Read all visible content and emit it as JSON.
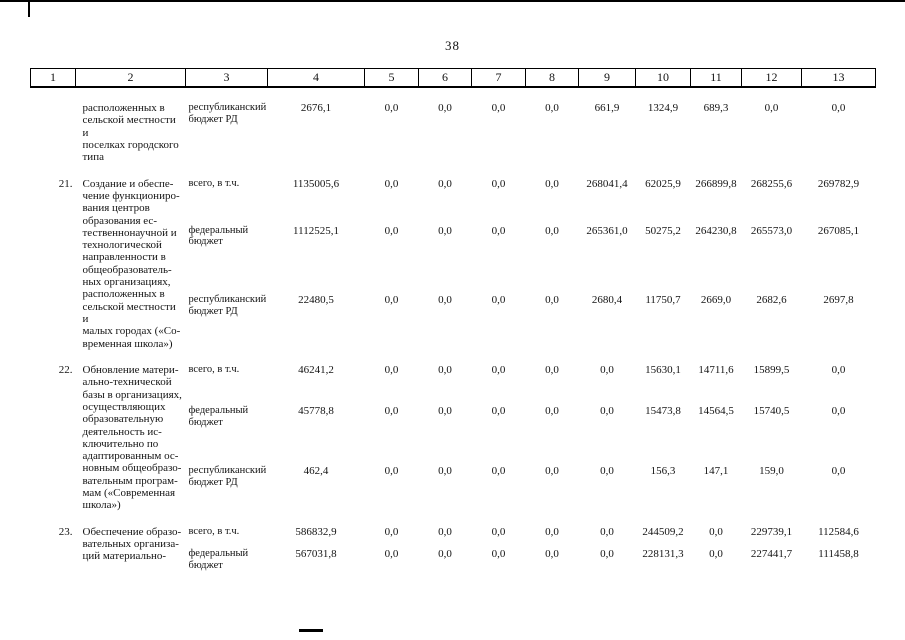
{
  "page": {
    "number": "38"
  },
  "table": {
    "header_cols": [
      "1",
      "2",
      "3",
      "4",
      "5",
      "6",
      "7",
      "8",
      "9",
      "10",
      "11",
      "12",
      "13"
    ],
    "rows": [
      {
        "num": "",
        "name": "расположенных в\nсельской местности и\nпоселках городского\nтипа",
        "lines": [
          {
            "source": "республиканский\nбюджет РД",
            "values": [
              "2676,1",
              "0,0",
              "0,0",
              "0,0",
              "0,0",
              "661,9",
              "1324,9",
              "689,3",
              "0,0",
              "0,0"
            ]
          }
        ]
      },
      {
        "num": "21.",
        "name": "Создание и обеспе-\nчение функциониро-\nвания центров\nобразования ес-\nтественнонаучной и\nтехнологической\nнаправленности в\nобщеобразователь-\nных организациях,\nрасположенных в\nсельской местности и\nмалых городах («Со-\nвременная школа»)",
        "lines": [
          {
            "source": "всего, в т.ч.",
            "values": [
              "1135005,6",
              "0,0",
              "0,0",
              "0,0",
              "0,0",
              "268041,4",
              "62025,9",
              "266899,8",
              "268255,6",
              "269782,9"
            ]
          },
          {
            "source": "федеральный\nбюджет",
            "values": [
              "1112525,1",
              "0,0",
              "0,0",
              "0,0",
              "0,0",
              "265361,0",
              "50275,2",
              "264230,8",
              "265573,0",
              "267085,1"
            ]
          },
          {
            "source": "республиканский\nбюджет РД",
            "values": [
              "22480,5",
              "0,0",
              "0,0",
              "0,0",
              "0,0",
              "2680,4",
              "11750,7",
              "2669,0",
              "2682,6",
              "2697,8"
            ]
          }
        ]
      },
      {
        "num": "22.",
        "name": "Обновление матери-\nально-технической\nбазы в организациях,\nосуществляющих\nобразовательную\nдеятельность  ис-\nключительно по\nадаптированным ос-\nновным общеобразо-\nвательным програм-\nмам («Современная\nшкола»)",
        "lines": [
          {
            "source": "всего, в т.ч.",
            "values": [
              "46241,2",
              "0,0",
              "0,0",
              "0,0",
              "0,0",
              "0,0",
              "15630,1",
              "14711,6",
              "15899,5",
              "0,0"
            ]
          },
          {
            "source": "федеральный\nбюджет",
            "values": [
              "45778,8",
              "0,0",
              "0,0",
              "0,0",
              "0,0",
              "0,0",
              "15473,8",
              "14564,5",
              "15740,5",
              "0,0"
            ]
          },
          {
            "source": "республиканский\nбюджет РД",
            "values": [
              "462,4",
              "0,0",
              "0,0",
              "0,0",
              "0,0",
              "0,0",
              "156,3",
              "147,1",
              "159,0",
              "0,0"
            ]
          }
        ]
      },
      {
        "num": "23.",
        "name": "Обеспечение образо-\nвательных организа-\nций материально-",
        "lines": [
          {
            "source": "всего, в т.ч.",
            "values": [
              "586832,9",
              "0,0",
              "0,0",
              "0,0",
              "0,0",
              "0,0",
              "244509,2",
              "0,0",
              "229739,1",
              "112584,6"
            ]
          },
          {
            "source": "федеральный\nбюджет",
            "values": [
              "567031,8",
              "0,0",
              "0,0",
              "0,0",
              "0,0",
              "0,0",
              "228131,3",
              "0,0",
              "227441,7",
              "111458,8"
            ]
          }
        ]
      }
    ]
  }
}
